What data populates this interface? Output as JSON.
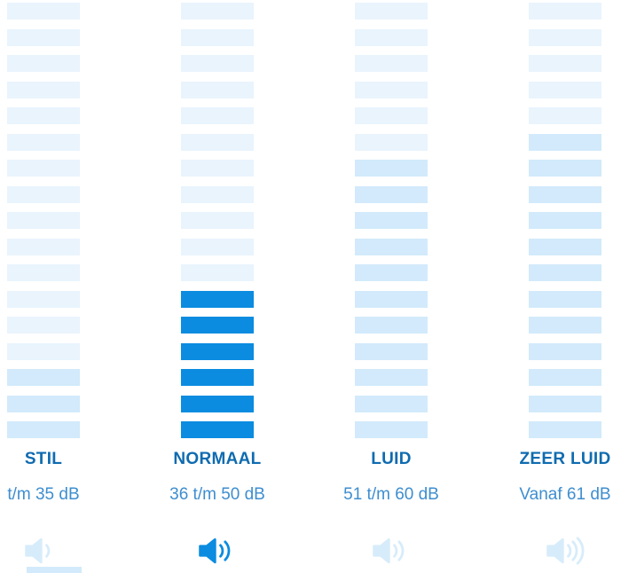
{
  "colors": {
    "bar_light": "#e9f4fd",
    "bar_mid": "#d2eafb",
    "bar_active": "#0b8ce0",
    "label_text": "#0f6bb0",
    "range_text": "#3e8ecf",
    "icon_active": "#0b8ce0",
    "icon_inactive": "#d7ecfb"
  },
  "chart_data": {
    "type": "bar",
    "title": "",
    "rows_per_column": 17,
    "categories": [
      "STIL",
      "NORMAAL",
      "LUID",
      "ZEER LUID"
    ],
    "ranges_db": [
      "t/m 35 dB",
      "36 t/m 50 dB",
      "51 t/m 60 dB",
      "Vanaf 61 dB"
    ],
    "selected_category": "NORMAAL",
    "legend": "off",
    "columns": [
      {
        "label": "STIL",
        "range": "t/m 35 dB",
        "active": false,
        "icon": "speaker-low-icon",
        "icon_waves": 1,
        "bar_shades": [
          "light",
          "light",
          "light",
          "light",
          "light",
          "light",
          "light",
          "light",
          "light",
          "light",
          "light",
          "light",
          "light",
          "light",
          "mid",
          "mid",
          "mid"
        ]
      },
      {
        "label": "NORMAAL",
        "range": "36 t/m 50 dB",
        "active": true,
        "icon": "speaker-medium-icon",
        "icon_waves": 2,
        "bar_shades": [
          "light",
          "light",
          "light",
          "light",
          "light",
          "light",
          "light",
          "light",
          "light",
          "light",
          "light",
          "active",
          "active",
          "active",
          "active",
          "active",
          "active"
        ]
      },
      {
        "label": "LUID",
        "range": "51 t/m 60 dB",
        "active": false,
        "icon": "speaker-loud-icon",
        "icon_waves": 2,
        "bar_shades": [
          "light",
          "light",
          "light",
          "light",
          "light",
          "light",
          "mid",
          "mid",
          "mid",
          "mid",
          "mid",
          "mid",
          "mid",
          "mid",
          "mid",
          "mid",
          "mid"
        ]
      },
      {
        "label": "ZEER LUID",
        "range": "Vanaf 61 dB",
        "active": false,
        "icon": "speaker-very-loud-icon",
        "icon_waves": 3,
        "bar_shades": [
          "light",
          "light",
          "light",
          "light",
          "light",
          "mid",
          "mid",
          "mid",
          "mid",
          "mid",
          "mid",
          "mid",
          "mid",
          "mid",
          "mid",
          "mid",
          "mid"
        ]
      }
    ]
  }
}
